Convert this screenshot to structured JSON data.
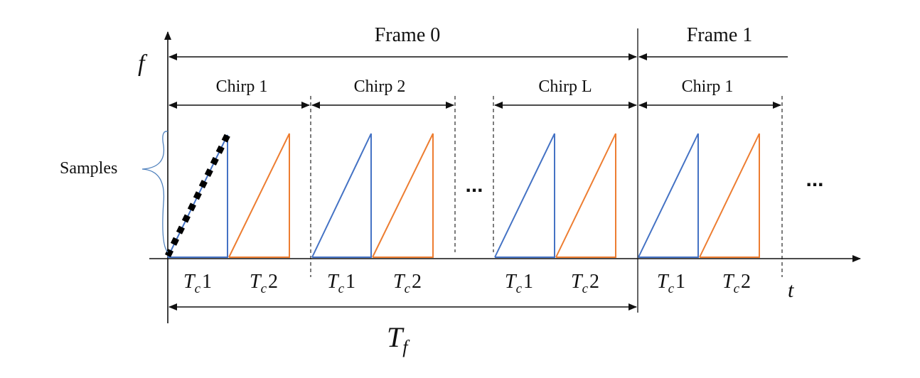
{
  "axes": {
    "y_label": "f",
    "x_label": "t"
  },
  "frames": {
    "frame0": "Frame 0",
    "frame1": "Frame 1"
  },
  "chirps": [
    {
      "label": "Chirp 1"
    },
    {
      "label": "Chirp 2"
    },
    {
      "label": "Chirp L"
    },
    {
      "label": "Chirp 1"
    }
  ],
  "ellipsis": [
    "...",
    "..."
  ],
  "samples_label": "Samples",
  "tc_labels": [
    {
      "base": "T",
      "sub": "c",
      "num": "1"
    },
    {
      "base": "T",
      "sub": "c",
      "num": "2"
    },
    {
      "base": "T",
      "sub": "c",
      "num": "1"
    },
    {
      "base": "T",
      "sub": "c",
      "num": "2"
    },
    {
      "base": "T",
      "sub": "c",
      "num": "1"
    },
    {
      "base": "T",
      "sub": "c",
      "num": "2"
    },
    {
      "base": "T",
      "sub": "c",
      "num": "1"
    },
    {
      "base": "T",
      "sub": "c",
      "num": "2"
    }
  ],
  "frame_period": {
    "base": "T",
    "sub": "f"
  },
  "colors": {
    "tx1": "#4472C4",
    "tx2": "#ED7D31",
    "samples": "#000000",
    "brace": "#4F81BD"
  }
}
